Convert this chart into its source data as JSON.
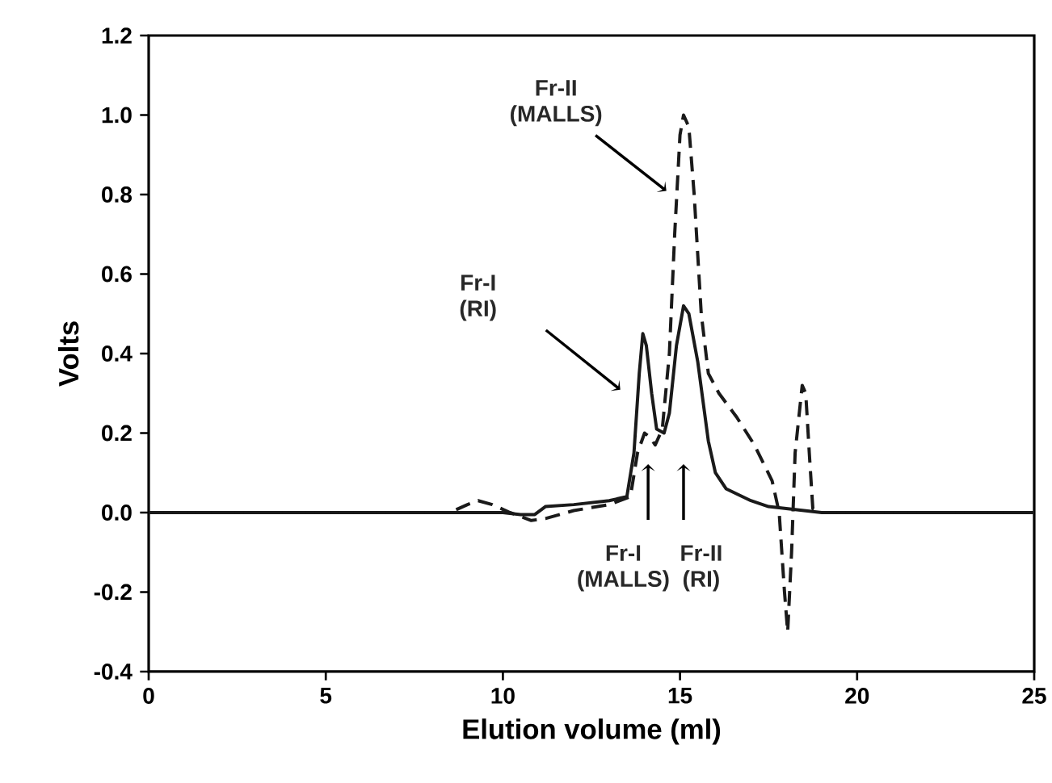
{
  "chart_data": {
    "type": "line",
    "xlabel": "Elution volume (ml)",
    "ylabel": "Volts",
    "xlim": [
      0,
      25
    ],
    "ylim": [
      -0.4,
      1.2
    ],
    "xticks": [
      0,
      5,
      10,
      15,
      20,
      25
    ],
    "yticks": [
      {
        "value": -0.4,
        "label": "-0.4"
      },
      {
        "value": -0.2,
        "label": "-0.2"
      },
      {
        "value": 0,
        "label": "0.0"
      },
      {
        "value": 0.2,
        "label": "0.2"
      },
      {
        "value": 0.4,
        "label": "0.4"
      },
      {
        "value": 0.6,
        "label": "0.6"
      },
      {
        "value": 0.8,
        "label": "0.8"
      },
      {
        "value": 1.0,
        "label": "1.0"
      },
      {
        "value": 1.2,
        "label": "1.2"
      }
    ],
    "grid": false,
    "marker": "none",
    "series": [
      {
        "color": "#1a1a1a",
        "line_style": "solid",
        "x": [
          0,
          8,
          10,
          10.5,
          10.9,
          11.2,
          12,
          13,
          13.5,
          13.7,
          13.85,
          13.95,
          14.05,
          14.2,
          14.34,
          14.55,
          14.7,
          14.9,
          15.1,
          15.25,
          15.5,
          15.8,
          16.0,
          16.3,
          17,
          17.5,
          18,
          18.5,
          19,
          25
        ],
        "values": [
          0,
          0,
          0,
          -0.005,
          -0.005,
          0.015,
          0.02,
          0.03,
          0.04,
          0.15,
          0.35,
          0.45,
          0.42,
          0.3,
          0.21,
          0.2,
          0.25,
          0.42,
          0.52,
          0.5,
          0.38,
          0.18,
          0.1,
          0.06,
          0.03,
          0.015,
          0.01,
          0.005,
          0,
          0
        ]
      },
      {
        "color": "#1a1a1a",
        "line_style": "dashed",
        "x": [
          0,
          8.5,
          9.0,
          9.3,
          9.7,
          10.2,
          10.8,
          11.2,
          12,
          13,
          13.6,
          13.8,
          14,
          14.15,
          14.3,
          14.5,
          14.7,
          14.85,
          15.0,
          15.1,
          15.25,
          15.4,
          15.6,
          15.8,
          16.1,
          16.6,
          17.1,
          17.6,
          17.8,
          17.95,
          18.04,
          18.15,
          18.25,
          18.45,
          18.55,
          18.65,
          18.75,
          19,
          25
        ],
        "values": [
          0,
          0,
          0.02,
          0.03,
          0.02,
          0,
          -0.02,
          -0.015,
          0.005,
          0.02,
          0.04,
          0.15,
          0.2,
          0.19,
          0.17,
          0.21,
          0.4,
          0.7,
          0.95,
          1.0,
          0.97,
          0.8,
          0.5,
          0.35,
          0.3,
          0.24,
          0.17,
          0.08,
          0,
          -0.2,
          -0.3,
          -0.1,
          0.15,
          0.32,
          0.3,
          0.15,
          0.01,
          0,
          0
        ]
      }
    ],
    "annotations": [
      "Fr-II (MALLS)",
      "Fr-I (RI)",
      "Fr-I (MALLS)",
      "Fr-II (RI)"
    ]
  }
}
